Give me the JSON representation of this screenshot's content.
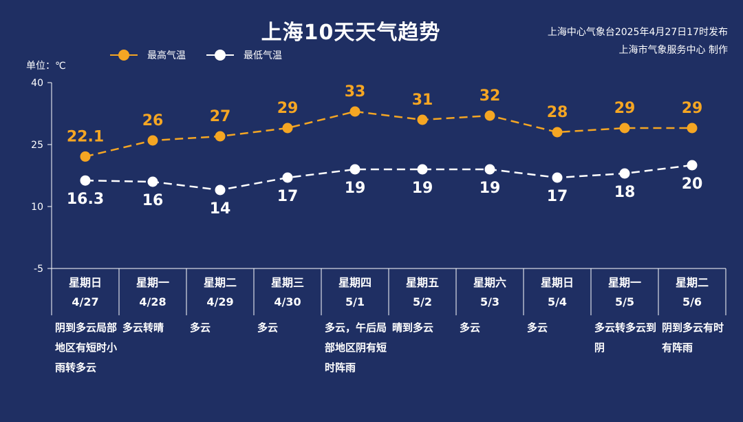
{
  "title": "上海10天天气趋势",
  "source_line1": "上海中心气象台2025年4月27日17时发布",
  "source_line2": "上海市气象服务中心 制作",
  "unit_label": "单位：℃",
  "colors": {
    "high": "#f5a623",
    "low": "#ffffff",
    "axis": "#ffffff",
    "background": "#1f2f63"
  },
  "chart_data": {
    "type": "line",
    "title": "上海10天天气趋势",
    "ylabel": "单位：℃",
    "ylim": [
      -5,
      40
    ],
    "yticks": [
      "40",
      "25",
      "10",
      "-5"
    ],
    "grid": false,
    "legend_position": "top-left",
    "x": [
      "4/27",
      "4/28",
      "4/29",
      "4/30",
      "5/1",
      "5/2",
      "5/3",
      "5/4",
      "5/5",
      "5/6"
    ],
    "series": [
      {
        "name": "最高气温",
        "values": [
          22.1,
          26,
          27,
          29,
          33,
          31,
          32,
          28,
          29,
          29
        ],
        "labels": [
          "22.1",
          "26",
          "27",
          "29",
          "33",
          "31",
          "32",
          "28",
          "29",
          "29"
        ]
      },
      {
        "name": "最低气温",
        "values": [
          16.3,
          16,
          14,
          17,
          19,
          19,
          19,
          17,
          18,
          20
        ],
        "labels": [
          "16.3",
          "16",
          "14",
          "17",
          "19",
          "19",
          "19",
          "17",
          "18",
          "20"
        ]
      }
    ]
  },
  "days": [
    {
      "weekday": "星期日",
      "date": "4/27",
      "desc": "阴到多云局部地区有短时小雨转多云"
    },
    {
      "weekday": "星期一",
      "date": "4/28",
      "desc": "多云转晴"
    },
    {
      "weekday": "星期二",
      "date": "4/29",
      "desc": "多云"
    },
    {
      "weekday": "星期三",
      "date": "4/30",
      "desc": "多云"
    },
    {
      "weekday": "星期四",
      "date": "5/1",
      "desc": "多云，午后局部地区阴有短时阵雨"
    },
    {
      "weekday": "星期五",
      "date": "5/2",
      "desc": "晴到多云"
    },
    {
      "weekday": "星期六",
      "date": "5/3",
      "desc": "多云"
    },
    {
      "weekday": "星期日",
      "date": "5/4",
      "desc": "多云"
    },
    {
      "weekday": "星期一",
      "date": "5/5",
      "desc": "多云转多云到阴"
    },
    {
      "weekday": "星期二",
      "date": "5/6",
      "desc": "阴到多云有时有阵雨"
    }
  ]
}
